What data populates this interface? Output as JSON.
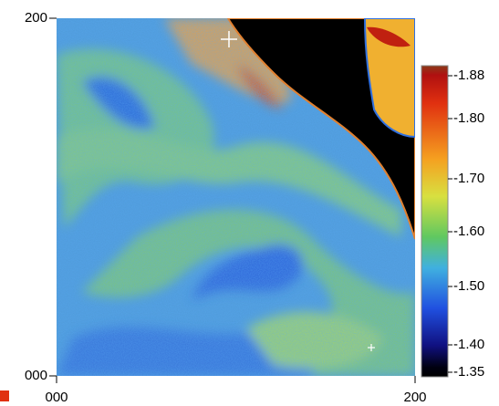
{
  "y_axis": {
    "labels": [
      "200",
      "000"
    ]
  },
  "x_axis": {
    "labels": [
      "000",
      "200"
    ]
  },
  "colorbar": {
    "labels": [
      "-1.88",
      "-1.80",
      "-1.70",
      "-1.60",
      "-1.50",
      "-1.40",
      "-1.35"
    ]
  }
}
